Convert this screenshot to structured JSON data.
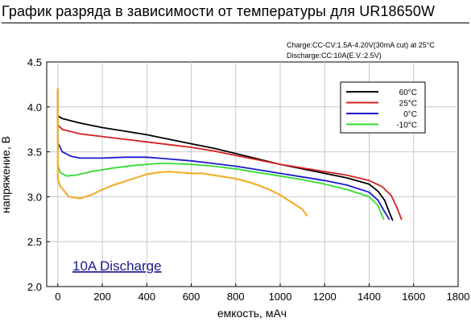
{
  "chart_data": {
    "type": "line",
    "title": "График разряда в зависимости от температуры для UR18650W",
    "xlabel": "емкость, мАч",
    "ylabel": "напряжение, В",
    "xlim": [
      -50,
      1800
    ],
    "ylim": [
      2.0,
      4.5
    ],
    "xticks": [
      0,
      200,
      400,
      600,
      800,
      1000,
      1200,
      1400,
      1600,
      1800
    ],
    "yticks": [
      "2.0",
      "2.5",
      "3.0",
      "3.5",
      "4.0",
      "4.5"
    ],
    "grid": true,
    "legend_position": "top-right",
    "annotations": [
      "Charge:CC-CV:1.5A-4.20V(30mA cut) at 25°C",
      "Discharge:CC:10A(E.V.:2.5V)"
    ],
    "box_label": "10A Discharge",
    "series": [
      {
        "name": "60°C",
        "color": "#000000",
        "x": [
          0,
          0,
          20,
          100,
          200,
          300,
          400,
          500,
          600,
          700,
          800,
          900,
          1000,
          1100,
          1200,
          1300,
          1400,
          1440,
          1470,
          1490,
          1505
        ],
        "y": [
          4.2,
          3.9,
          3.87,
          3.82,
          3.77,
          3.73,
          3.69,
          3.64,
          3.59,
          3.54,
          3.48,
          3.42,
          3.36,
          3.31,
          3.26,
          3.21,
          3.14,
          3.06,
          2.96,
          2.83,
          2.74
        ]
      },
      {
        "name": "25°C",
        "color": "#d62020",
        "x": [
          0,
          0,
          20,
          100,
          200,
          300,
          400,
          500,
          600,
          700,
          800,
          900,
          1000,
          1100,
          1200,
          1300,
          1400,
          1460,
          1500,
          1525,
          1545
        ],
        "y": [
          4.2,
          3.8,
          3.75,
          3.7,
          3.67,
          3.64,
          3.61,
          3.58,
          3.55,
          3.51,
          3.46,
          3.41,
          3.36,
          3.32,
          3.28,
          3.24,
          3.18,
          3.11,
          3.01,
          2.88,
          2.75
        ]
      },
      {
        "name": "0°C",
        "color": "#1a1acc",
        "x": [
          0,
          0,
          20,
          60,
          100,
          200,
          300,
          400,
          500,
          600,
          700,
          800,
          900,
          1000,
          1100,
          1200,
          1300,
          1400,
          1440,
          1465,
          1490
        ],
        "y": [
          4.2,
          3.6,
          3.5,
          3.45,
          3.43,
          3.43,
          3.44,
          3.44,
          3.42,
          3.4,
          3.37,
          3.34,
          3.3,
          3.26,
          3.22,
          3.18,
          3.13,
          3.05,
          2.96,
          2.85,
          2.75
        ]
      },
      {
        "name": "-10°C",
        "color": "#33dd33",
        "x": [
          0,
          0,
          10,
          40,
          80,
          150,
          250,
          350,
          450,
          500,
          600,
          700,
          800,
          900,
          1000,
          1100,
          1200,
          1300,
          1400,
          1440,
          1465
        ],
        "y": [
          4.2,
          3.35,
          3.27,
          3.23,
          3.24,
          3.28,
          3.32,
          3.35,
          3.37,
          3.37,
          3.36,
          3.34,
          3.31,
          3.27,
          3.23,
          3.19,
          3.14,
          3.08,
          3.0,
          2.9,
          2.75
        ]
      },
      {
        "color": "#f0b030",
        "x": [
          0,
          0,
          10,
          50,
          100,
          150,
          200,
          250,
          300,
          350,
          400,
          450,
          500,
          550,
          600,
          650,
          700,
          750,
          800,
          850,
          900,
          950,
          1000,
          1050,
          1100,
          1120
        ],
        "y": [
          4.2,
          3.2,
          3.12,
          3.0,
          2.98,
          3.02,
          3.08,
          3.13,
          3.17,
          3.21,
          3.25,
          3.27,
          3.28,
          3.27,
          3.26,
          3.26,
          3.24,
          3.22,
          3.2,
          3.17,
          3.13,
          3.08,
          3.02,
          2.94,
          2.86,
          2.79
        ]
      }
    ]
  }
}
